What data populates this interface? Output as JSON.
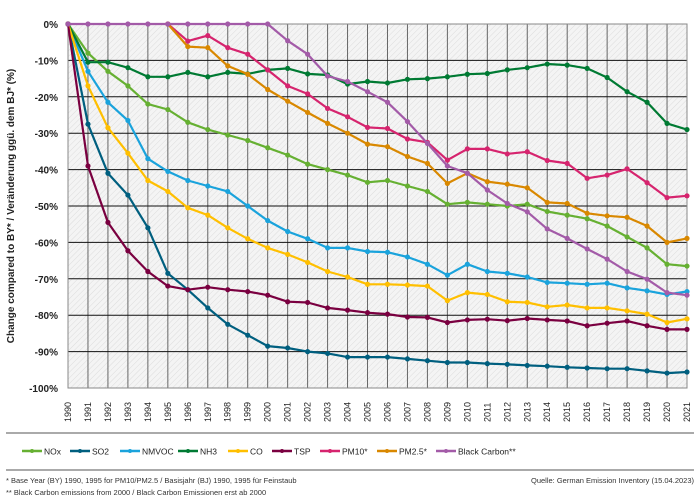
{
  "chart_data": {
    "type": "line",
    "ylabel": "Change compared to BY* / Veränderung ggü. dem BJ* (%)",
    "xlabel": "",
    "ylim": [
      -100,
      0
    ],
    "yticks": [
      "0%",
      "-10%",
      "-20%",
      "-30%",
      "-40%",
      "-50%",
      "-60%",
      "-70%",
      "-80%",
      "-90%",
      "-100%"
    ],
    "grid": true,
    "legend_position": "bottom",
    "x": [
      "1990",
      "1991",
      "1992",
      "1993",
      "1994",
      "1995",
      "1996",
      "1997",
      "1998",
      "1999",
      "2000",
      "2001",
      "2002",
      "2003",
      "2004",
      "2005",
      "2006",
      "2007",
      "2008",
      "2009",
      "2010",
      "2011",
      "2012",
      "2013",
      "2014",
      "2015",
      "2016",
      "2017",
      "2018",
      "2019",
      "2020",
      "2021"
    ],
    "series": [
      {
        "name": "NOx",
        "color": "#66b032",
        "values": [
          0,
          -8,
          -13,
          -17,
          -22,
          -23.5,
          -27,
          -29,
          -30.5,
          -32,
          -34,
          -36,
          -38.5,
          -40,
          -41.5,
          -43.5,
          -43,
          -44.5,
          -46,
          -49.5,
          -49,
          -49.5,
          -50,
          -49.5,
          -51.5,
          -52.5,
          -53.5,
          -55.5,
          -58.5,
          -61.5,
          -66,
          -66.5
        ]
      },
      {
        "name": "SO2",
        "color": "#005f7f",
        "values": [
          0,
          -27.5,
          -41,
          -47,
          -56,
          -68.5,
          -73,
          -78,
          -82.5,
          -85.5,
          -88.5,
          -89,
          -90,
          -90.5,
          -91.5,
          -91.5,
          -91.5,
          -92,
          -92.5,
          -93,
          -93,
          -93.3,
          -93.5,
          -93.8,
          -94,
          -94.3,
          -94.5,
          -94.7,
          -94.7,
          -95.3,
          -95.9,
          -95.6
        ]
      },
      {
        "name": "NMVOC",
        "color": "#1aa3dc",
        "values": [
          0,
          -13,
          -21.5,
          -26.5,
          -37,
          -40.5,
          -43,
          -44.5,
          -46,
          -50,
          -54,
          -57,
          -59,
          -61.5,
          -61.5,
          -62.5,
          -62.7,
          -64,
          -66,
          -69,
          -66,
          -68,
          -68.5,
          -69.5,
          -71,
          -71.2,
          -71.5,
          -71.2,
          -72.5,
          -73.3,
          -74.3,
          -73.5
        ]
      },
      {
        "name": "NH3",
        "color": "#007a33",
        "values": [
          0,
          -10.5,
          -10.5,
          -12,
          -14.5,
          -14.5,
          -13.3,
          -14.5,
          -13.3,
          -13.7,
          -12.6,
          -12.2,
          -13.7,
          -14,
          -16.5,
          -15.8,
          -16.2,
          -15.2,
          -15,
          -14.5,
          -13.8,
          -13.6,
          -12.6,
          -12,
          -11,
          -11.3,
          -12.2,
          -14.7,
          -18.6,
          -21.5,
          -27.3,
          -29
        ]
      },
      {
        "name": "CO",
        "color": "#ffbf00",
        "values": [
          0,
          -17,
          -28.5,
          -35.5,
          -43,
          -46,
          -50.5,
          -52.5,
          -56,
          -59,
          -61.5,
          -63.3,
          -65.5,
          -68,
          -69.5,
          -71.5,
          -71.5,
          -71.7,
          -72,
          -76,
          -73.8,
          -74.3,
          -76.3,
          -76.5,
          -77.7,
          -77.2,
          -78,
          -78,
          -78.8,
          -79.7,
          -82,
          -81
        ]
      },
      {
        "name": "TSP",
        "color": "#7a0040",
        "values": [
          0,
          -39,
          -54.5,
          -62.3,
          -68,
          -72,
          -73,
          -72.3,
          -73,
          -73.5,
          -74.5,
          -76.3,
          -76.5,
          -78,
          -78.6,
          -79.3,
          -79.7,
          -80.5,
          -80.6,
          -82,
          -81.3,
          -81.1,
          -81.5,
          -80.9,
          -81.3,
          -81.6,
          -82.9,
          -82.2,
          -81.6,
          -82.9,
          -83.9,
          -83.9
        ]
      },
      {
        "name": "PM10*",
        "color": "#d6246e",
        "values": [
          null,
          null,
          null,
          null,
          null,
          0,
          -4.7,
          -3.2,
          -6.5,
          -8.3,
          -12.6,
          -17,
          -19.2,
          -23.2,
          -25.5,
          -28.4,
          -28.7,
          -31.6,
          -32.5,
          -37.4,
          -34.3,
          -34.3,
          -35.7,
          -35.1,
          -37.5,
          -38.3,
          -42.4,
          -41.5,
          -39.8,
          -43.6,
          -47.7,
          -47.2
        ]
      },
      {
        "name": "PM2.5*",
        "color": "#d98800",
        "values": [
          null,
          null,
          null,
          null,
          null,
          0,
          -6.2,
          -6.5,
          -11.5,
          -13.8,
          -18,
          -21.2,
          -24.3,
          -27.3,
          -30,
          -33,
          -33.7,
          -36.4,
          -38.3,
          -43.8,
          -41,
          -43.3,
          -44,
          -45,
          -49,
          -49.3,
          -52,
          -52.7,
          -53.1,
          -55.5,
          -60,
          -58.9
        ]
      },
      {
        "name": "Black Carbon**",
        "color": "#a35ba8",
        "values": [
          0,
          0,
          0,
          0,
          0,
          0,
          0,
          0,
          0,
          0,
          0,
          -4.6,
          -8.3,
          -14.3,
          -15.8,
          -18.6,
          -21.5,
          -26.8,
          -32.8,
          -39,
          -41,
          -45.6,
          -49.3,
          -51.6,
          -56.3,
          -58.9,
          -61.8,
          -64.6,
          -68,
          -70.1,
          -73.8,
          -74.5
        ]
      }
    ]
  },
  "footnotes": {
    "note1": "* Base Year (BY) 1990, 1995 for PM10/PM2.5 / Basisjahr (BJ) 1990, 1995 für Feinstaub",
    "note2": "** Black Carbon emissions  from 2000 / Black Carbon Emissionen erst ab 2000",
    "source": "Quelle:  German Emission Inventory (15.04.2023)"
  }
}
